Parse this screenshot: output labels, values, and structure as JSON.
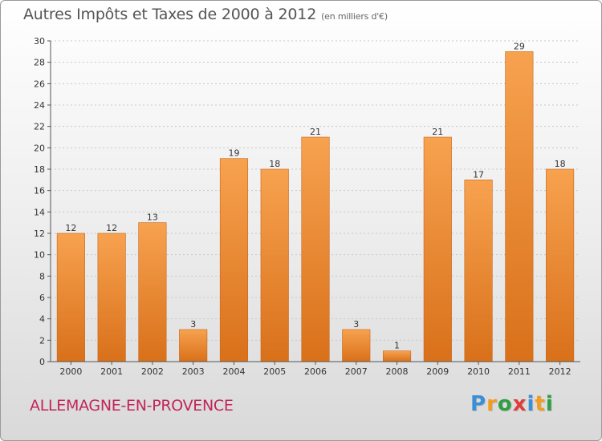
{
  "header": {
    "title": "Autres Impôts et Taxes de 2000 à 2012",
    "subtitle": "(en milliers d'€)"
  },
  "footer": {
    "place": "ALLEMAGNE-EN-PROVENCE",
    "logo_letters": [
      "P",
      "r",
      "o",
      "x",
      "i",
      "t",
      "i"
    ],
    "logo_colors": [
      "#3a8fd6",
      "#f29d1e",
      "#2f9e44",
      "#e23b3b",
      "#3a8fd6",
      "#f29d1e",
      "#2f9e44"
    ]
  },
  "chart_data": {
    "type": "bar",
    "categories": [
      "2000",
      "2001",
      "2002",
      "2003",
      "2004",
      "2005",
      "2006",
      "2007",
      "2008",
      "2009",
      "2010",
      "2011",
      "2012"
    ],
    "values": [
      12,
      12,
      13,
      3,
      19,
      18,
      21,
      3,
      1,
      21,
      17,
      29,
      18
    ],
    "data_labels": [
      "12",
      "12",
      "13",
      "3",
      "19",
      "18",
      "21",
      "3",
      "1",
      "21",
      "17",
      "29",
      "18"
    ],
    "ylim": [
      0,
      30
    ],
    "yticks": [
      "0",
      "2",
      "4",
      "6",
      "8",
      "10",
      "12",
      "14",
      "16",
      "18",
      "20",
      "22",
      "24",
      "26",
      "28",
      "30"
    ],
    "grid": true,
    "bar_color": "#f0892e"
  }
}
